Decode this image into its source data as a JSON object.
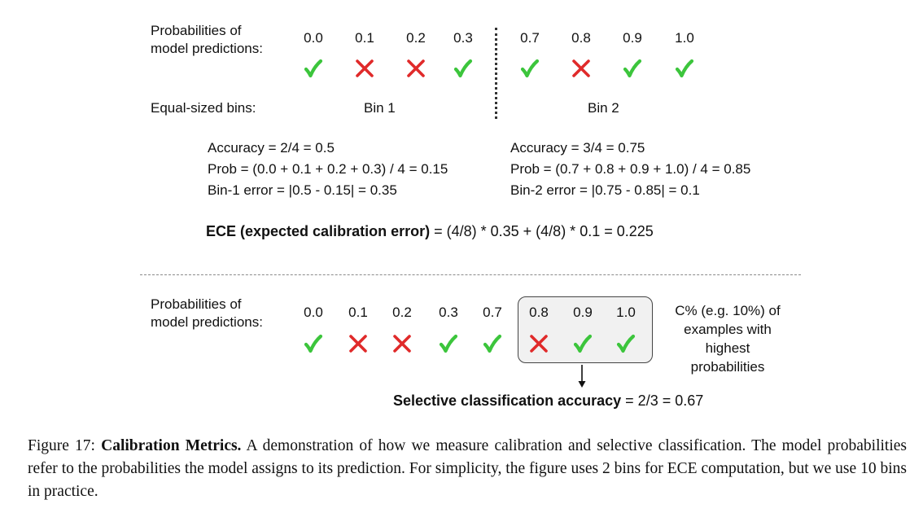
{
  "top": {
    "row_label": [
      "Probabilities of",
      "model predictions:"
    ],
    "probs": [
      "0.0",
      "0.1",
      "0.2",
      "0.3",
      "0.7",
      "0.8",
      "0.9",
      "1.0"
    ],
    "correct": [
      true,
      false,
      false,
      true,
      true,
      false,
      true,
      true
    ],
    "bins_label": "Equal-sized bins:",
    "bin1": "Bin 1",
    "bin2": "Bin 2",
    "bin1_stats": [
      "Accuracy = 2/4 = 0.5",
      "Prob = (0.0 + 0.1 + 0.2 + 0.3) / 4 = 0.15",
      "Bin-1 error = |0.5 - 0.15| = 0.35"
    ],
    "bin2_stats": [
      "Accuracy = 3/4 = 0.75",
      "Prob = (0.7 + 0.8 + 0.9 + 1.0) / 4 = 0.85",
      "Bin-2 error = |0.75 - 0.85| = 0.1"
    ],
    "ece_bold": "ECE (expected calibration error)",
    "ece_rest": " = (4/8) * 0.35 + (4/8) * 0.1 = 0.225"
  },
  "bottom": {
    "row_label": [
      "Probabilities of",
      "model predictions:"
    ],
    "probs": [
      "0.0",
      "0.1",
      "0.2",
      "0.3",
      "0.7",
      "0.8",
      "0.9",
      "1.0"
    ],
    "correct": [
      true,
      false,
      false,
      true,
      true,
      false,
      true,
      true
    ],
    "note": [
      "C% (e.g. 10%) of",
      "examples with",
      "highest",
      "probabilities"
    ],
    "sel_bold": "Selective classification accuracy",
    "sel_rest": " = 2/3 = 0.67"
  },
  "caption": {
    "prefix": "Figure 17: ",
    "title": "Calibration Metrics.",
    "body": " A demonstration of how we measure calibration and selective classification. The model probabilities refer to the probabilities the model assigns to its prediction. For simplicity, the figure uses 2 bins for ECE computation, but we use 10 bins in practice."
  },
  "colors": {
    "check": "#3cc53c",
    "cross": "#e02a2a"
  },
  "icons": {
    "correct": "check-icon",
    "incorrect": "cross-icon"
  }
}
